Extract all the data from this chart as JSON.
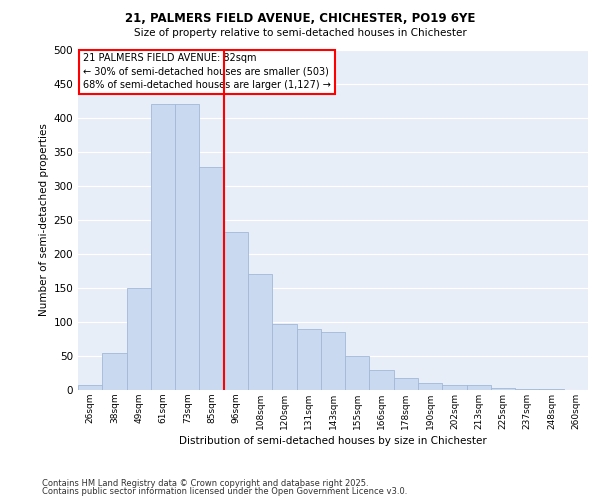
{
  "title1": "21, PALMERS FIELD AVENUE, CHICHESTER, PO19 6YE",
  "title2": "Size of property relative to semi-detached houses in Chichester",
  "xlabel": "Distribution of semi-detached houses by size in Chichester",
  "ylabel": "Number of semi-detached properties",
  "categories": [
    "26sqm",
    "38sqm",
    "49sqm",
    "61sqm",
    "73sqm",
    "85sqm",
    "96sqm",
    "108sqm",
    "120sqm",
    "131sqm",
    "143sqm",
    "155sqm",
    "166sqm",
    "178sqm",
    "190sqm",
    "202sqm",
    "213sqm",
    "225sqm",
    "237sqm",
    "248sqm",
    "260sqm"
  ],
  "values": [
    7,
    55,
    150,
    420,
    420,
    328,
    233,
    170,
    97,
    90,
    85,
    50,
    30,
    17,
    10,
    7,
    8,
    3,
    2,
    1,
    0
  ],
  "bar_color": "#c9d9f0",
  "bar_edge_color": "#a0b8d8",
  "vline_x": 5.5,
  "vline_color": "red",
  "annotation_title": "21 PALMERS FIELD AVENUE: 82sqm",
  "annotation_line2": "← 30% of semi-detached houses are smaller (503)",
  "annotation_line3": "68% of semi-detached houses are larger (1,127) →",
  "annotation_box_color": "white",
  "annotation_box_edge": "red",
  "ylim": [
    0,
    500
  ],
  "yticks": [
    0,
    50,
    100,
    150,
    200,
    250,
    300,
    350,
    400,
    450,
    500
  ],
  "background_color": "#e8eef8",
  "footnote1": "Contains HM Land Registry data © Crown copyright and database right 2025.",
  "footnote2": "Contains public sector information licensed under the Open Government Licence v3.0."
}
